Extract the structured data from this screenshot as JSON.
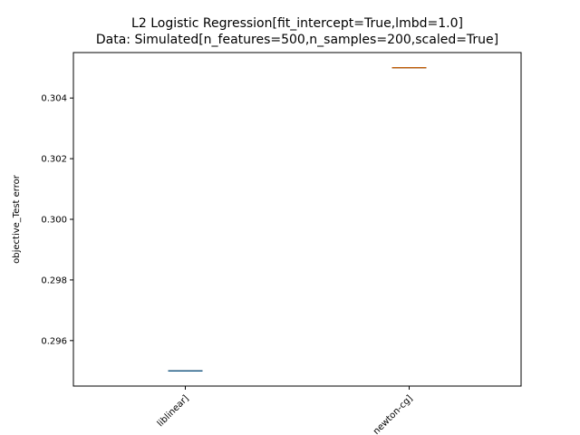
{
  "chart_data": {
    "type": "box",
    "title_lines": [
      "L2 Logistic Regression[fit_intercept=True,lmbd=1.0]",
      "Data: Simulated[n_features=500,n_samples=200,scaled=True]"
    ],
    "xlabel": "",
    "ylabel": "objective_Test error",
    "ylim": [
      0.2945,
      0.3055
    ],
    "yticks": [
      0.296,
      0.298,
      0.3,
      0.302,
      0.304
    ],
    "ytick_labels": [
      "0.296",
      "0.298",
      "0.300",
      "0.302",
      "0.304"
    ],
    "categories": [
      "liblinear]",
      "newton-cg]"
    ],
    "series": [
      {
        "category": "liblinear]",
        "value": 0.295,
        "color": "#1f77b4"
      },
      {
        "category": "newton-cg]",
        "value": 0.305,
        "color": "#ff7f0e"
      }
    ],
    "grid": false
  }
}
